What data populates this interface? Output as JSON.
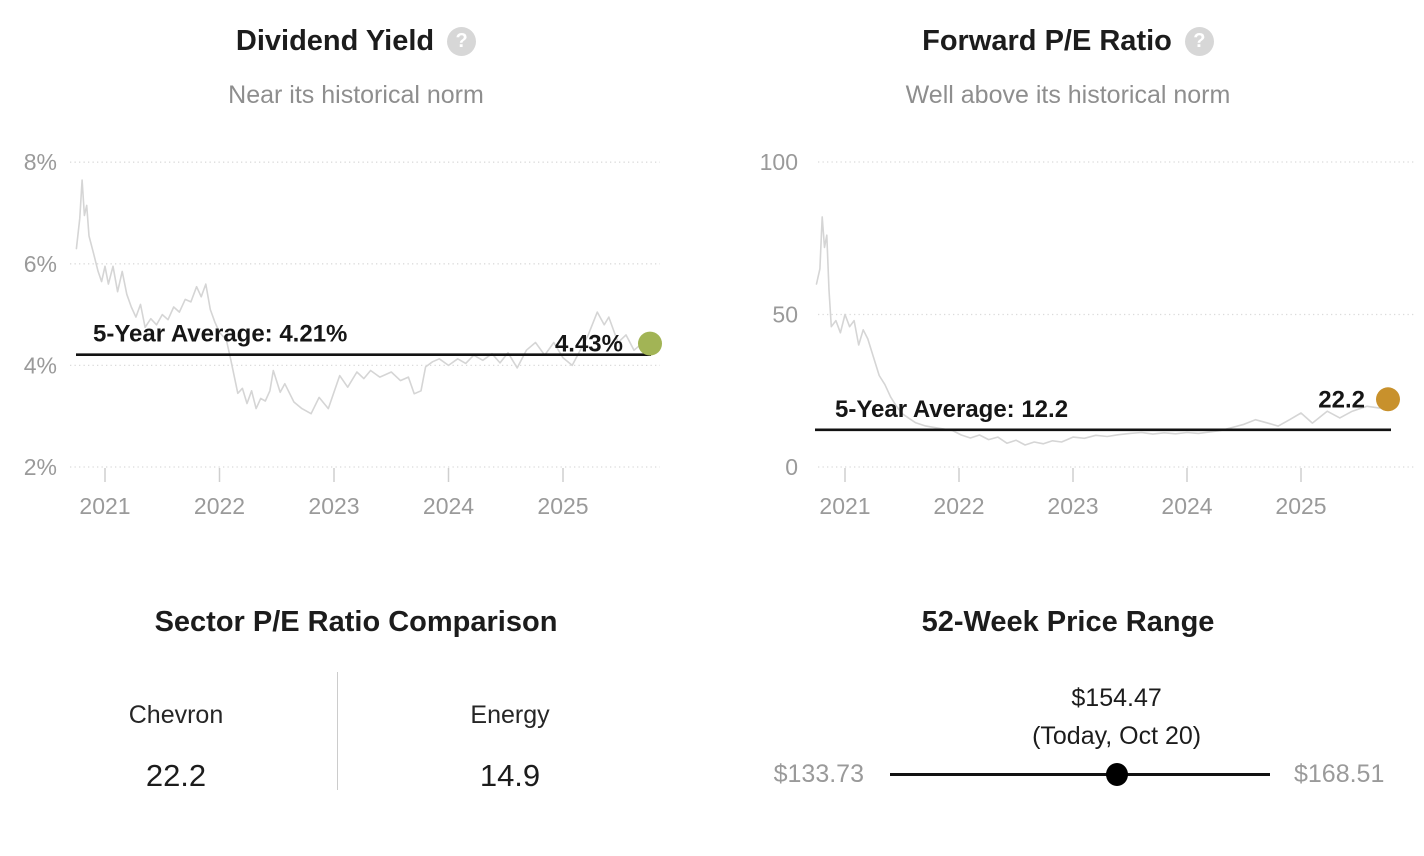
{
  "icons": {
    "help": "?"
  },
  "chart_data": [
    {
      "type": "line",
      "title": "Dividend Yield",
      "subtitle": "Near its historical norm",
      "unit": "%",
      "grid": "horizontal dotted",
      "legend_position": "none",
      "line_color": "#d5d5d5",
      "dot_color": "#a2b455",
      "ylim": [
        2,
        8
      ],
      "xlim": [
        2020.75,
        2025.9
      ],
      "y_ticks": [
        {
          "label": "8%",
          "value": 8
        },
        {
          "label": "6%",
          "value": 6
        },
        {
          "label": "4%",
          "value": 4
        },
        {
          "label": "2%",
          "value": 2
        }
      ],
      "x_ticks": [
        {
          "label": "2021",
          "value": 2021
        },
        {
          "label": "2022",
          "value": 2022
        },
        {
          "label": "2023",
          "value": 2023
        },
        {
          "label": "2024",
          "value": 2024
        },
        {
          "label": "2025",
          "value": 2025
        }
      ],
      "average": {
        "label": "5-Year Average: 4.21%",
        "value": 4.21
      },
      "current": {
        "label": "4.43%",
        "value": 4.43
      },
      "points": [
        [
          2020.75,
          6.3
        ],
        [
          2020.78,
          6.9
        ],
        [
          2020.8,
          7.65
        ],
        [
          2020.82,
          6.95
        ],
        [
          2020.84,
          7.15
        ],
        [
          2020.86,
          6.55
        ],
        [
          2020.9,
          6.2
        ],
        [
          2020.94,
          5.85
        ],
        [
          2020.97,
          5.65
        ],
        [
          2021.0,
          5.95
        ],
        [
          2021.03,
          5.6
        ],
        [
          2021.07,
          5.95
        ],
        [
          2021.11,
          5.45
        ],
        [
          2021.15,
          5.85
        ],
        [
          2021.19,
          5.4
        ],
        [
          2021.23,
          5.15
        ],
        [
          2021.27,
          4.95
        ],
        [
          2021.31,
          5.2
        ],
        [
          2021.35,
          4.75
        ],
        [
          2021.4,
          4.92
        ],
        [
          2021.45,
          4.8
        ],
        [
          2021.5,
          5.0
        ],
        [
          2021.55,
          4.9
        ],
        [
          2021.6,
          5.15
        ],
        [
          2021.65,
          5.05
        ],
        [
          2021.7,
          5.3
        ],
        [
          2021.75,
          5.25
        ],
        [
          2021.8,
          5.55
        ],
        [
          2021.84,
          5.35
        ],
        [
          2021.88,
          5.6
        ],
        [
          2021.92,
          5.1
        ],
        [
          2021.96,
          4.85
        ],
        [
          2022.0,
          4.65
        ],
        [
          2022.06,
          4.5
        ],
        [
          2022.1,
          4.1
        ],
        [
          2022.16,
          3.45
        ],
        [
          2022.2,
          3.55
        ],
        [
          2022.24,
          3.25
        ],
        [
          2022.28,
          3.5
        ],
        [
          2022.32,
          3.15
        ],
        [
          2022.36,
          3.35
        ],
        [
          2022.4,
          3.3
        ],
        [
          2022.44,
          3.5
        ],
        [
          2022.47,
          3.9
        ],
        [
          2022.53,
          3.47
        ],
        [
          2022.57,
          3.64
        ],
        [
          2022.65,
          3.28
        ],
        [
          2022.72,
          3.15
        ],
        [
          2022.8,
          3.05
        ],
        [
          2022.87,
          3.37
        ],
        [
          2022.95,
          3.15
        ],
        [
          2023.05,
          3.8
        ],
        [
          2023.12,
          3.57
        ],
        [
          2023.2,
          3.87
        ],
        [
          2023.26,
          3.74
        ],
        [
          2023.32,
          3.9
        ],
        [
          2023.4,
          3.77
        ],
        [
          2023.5,
          3.87
        ],
        [
          2023.58,
          3.7
        ],
        [
          2023.65,
          3.77
        ],
        [
          2023.7,
          3.44
        ],
        [
          2023.76,
          3.5
        ],
        [
          2023.8,
          3.97
        ],
        [
          2023.86,
          4.07
        ],
        [
          2023.92,
          4.13
        ],
        [
          2024.0,
          4.0
        ],
        [
          2024.08,
          4.13
        ],
        [
          2024.15,
          4.04
        ],
        [
          2024.22,
          4.2
        ],
        [
          2024.3,
          4.1
        ],
        [
          2024.38,
          4.23
        ],
        [
          2024.45,
          4.05
        ],
        [
          2024.52,
          4.25
        ],
        [
          2024.6,
          3.95
        ],
        [
          2024.68,
          4.3
        ],
        [
          2024.76,
          4.45
        ],
        [
          2024.84,
          4.2
        ],
        [
          2024.92,
          4.45
        ],
        [
          2025.0,
          4.15
        ],
        [
          2025.08,
          4.0
        ],
        [
          2025.15,
          4.3
        ],
        [
          2025.22,
          4.6
        ],
        [
          2025.3,
          5.05
        ],
        [
          2025.36,
          4.8
        ],
        [
          2025.4,
          4.95
        ],
        [
          2025.48,
          4.45
        ],
        [
          2025.55,
          4.6
        ],
        [
          2025.62,
          4.3
        ],
        [
          2025.7,
          4.45
        ],
        [
          2025.78,
          4.43
        ]
      ]
    },
    {
      "type": "line",
      "title": "Forward P/E Ratio",
      "subtitle": "Well above its historical norm",
      "unit": "",
      "grid": "horizontal dotted",
      "legend_position": "none",
      "line_color": "#d5d5d5",
      "dot_color": "#c8912c",
      "ylim": [
        0,
        100
      ],
      "xlim": [
        2020.75,
        2025.9
      ],
      "y_ticks": [
        {
          "label": "100",
          "value": 100
        },
        {
          "label": "50",
          "value": 50
        },
        {
          "label": "0",
          "value": 0
        }
      ],
      "x_ticks": [
        {
          "label": "2021",
          "value": 2021
        },
        {
          "label": "2022",
          "value": 2022
        },
        {
          "label": "2023",
          "value": 2023
        },
        {
          "label": "2024",
          "value": 2024
        },
        {
          "label": "2025",
          "value": 2025
        }
      ],
      "average": {
        "label": "5-Year Average: 12.2",
        "value": 12.2
      },
      "current": {
        "label": "22.2",
        "value": 22.2
      },
      "points": [
        [
          2020.75,
          60
        ],
        [
          2020.78,
          65
        ],
        [
          2020.8,
          82
        ],
        [
          2020.82,
          72
        ],
        [
          2020.84,
          76
        ],
        [
          2020.86,
          58
        ],
        [
          2020.88,
          46
        ],
        [
          2020.92,
          48
        ],
        [
          2020.96,
          44
        ],
        [
          2021.0,
          50
        ],
        [
          2021.04,
          46
        ],
        [
          2021.08,
          48
        ],
        [
          2021.12,
          40
        ],
        [
          2021.16,
          45
        ],
        [
          2021.2,
          42
        ],
        [
          2021.25,
          36
        ],
        [
          2021.3,
          30
        ],
        [
          2021.35,
          27
        ],
        [
          2021.4,
          23
        ],
        [
          2021.45,
          20
        ],
        [
          2021.5,
          17.5
        ],
        [
          2021.56,
          16
        ],
        [
          2021.62,
          14.5
        ],
        [
          2021.7,
          13.5
        ],
        [
          2021.78,
          13
        ],
        [
          2021.86,
          12.5
        ],
        [
          2021.94,
          12
        ],
        [
          2022.02,
          10.5
        ],
        [
          2022.1,
          9.5
        ],
        [
          2022.18,
          10.5
        ],
        [
          2022.26,
          9
        ],
        [
          2022.34,
          9.8
        ],
        [
          2022.42,
          7.8
        ],
        [
          2022.5,
          8.8
        ],
        [
          2022.58,
          7.2
        ],
        [
          2022.66,
          8.2
        ],
        [
          2022.74,
          7.6
        ],
        [
          2022.82,
          8.6
        ],
        [
          2022.9,
          8.2
        ],
        [
          2023.0,
          9.8
        ],
        [
          2023.1,
          9.4
        ],
        [
          2023.2,
          10.4
        ],
        [
          2023.3,
          10.0
        ],
        [
          2023.4,
          10.6
        ],
        [
          2023.5,
          11.0
        ],
        [
          2023.6,
          11.3
        ],
        [
          2023.7,
          10.8
        ],
        [
          2023.8,
          11.2
        ],
        [
          2023.9,
          10.9
        ],
        [
          2024.0,
          11.3
        ],
        [
          2024.1,
          11.0
        ],
        [
          2024.2,
          11.5
        ],
        [
          2024.3,
          12.0
        ],
        [
          2024.4,
          13.0
        ],
        [
          2024.5,
          14.0
        ],
        [
          2024.6,
          15.5
        ],
        [
          2024.7,
          14.5
        ],
        [
          2024.8,
          13.4
        ],
        [
          2024.9,
          15.5
        ],
        [
          2025.0,
          17.7
        ],
        [
          2025.1,
          14.4
        ],
        [
          2025.23,
          18.3
        ],
        [
          2025.34,
          16.1
        ],
        [
          2025.45,
          18.3
        ],
        [
          2025.58,
          19.9
        ],
        [
          2025.69,
          19.3
        ],
        [
          2025.8,
          22.2
        ]
      ]
    },
    {
      "type": "table",
      "title": "Sector P/E Ratio Comparison",
      "columns": [
        {
          "label": "Chevron",
          "value": "22.2"
        },
        {
          "label": "Energy",
          "value": "14.9"
        }
      ]
    },
    {
      "type": "range",
      "title": "52-Week Price Range",
      "current": "$154.47",
      "current_note": "(Today, Oct 20)",
      "low": "$133.73",
      "high": "$168.51",
      "low_value": 133.73,
      "high_value": 168.51,
      "current_value": 154.47
    }
  ]
}
